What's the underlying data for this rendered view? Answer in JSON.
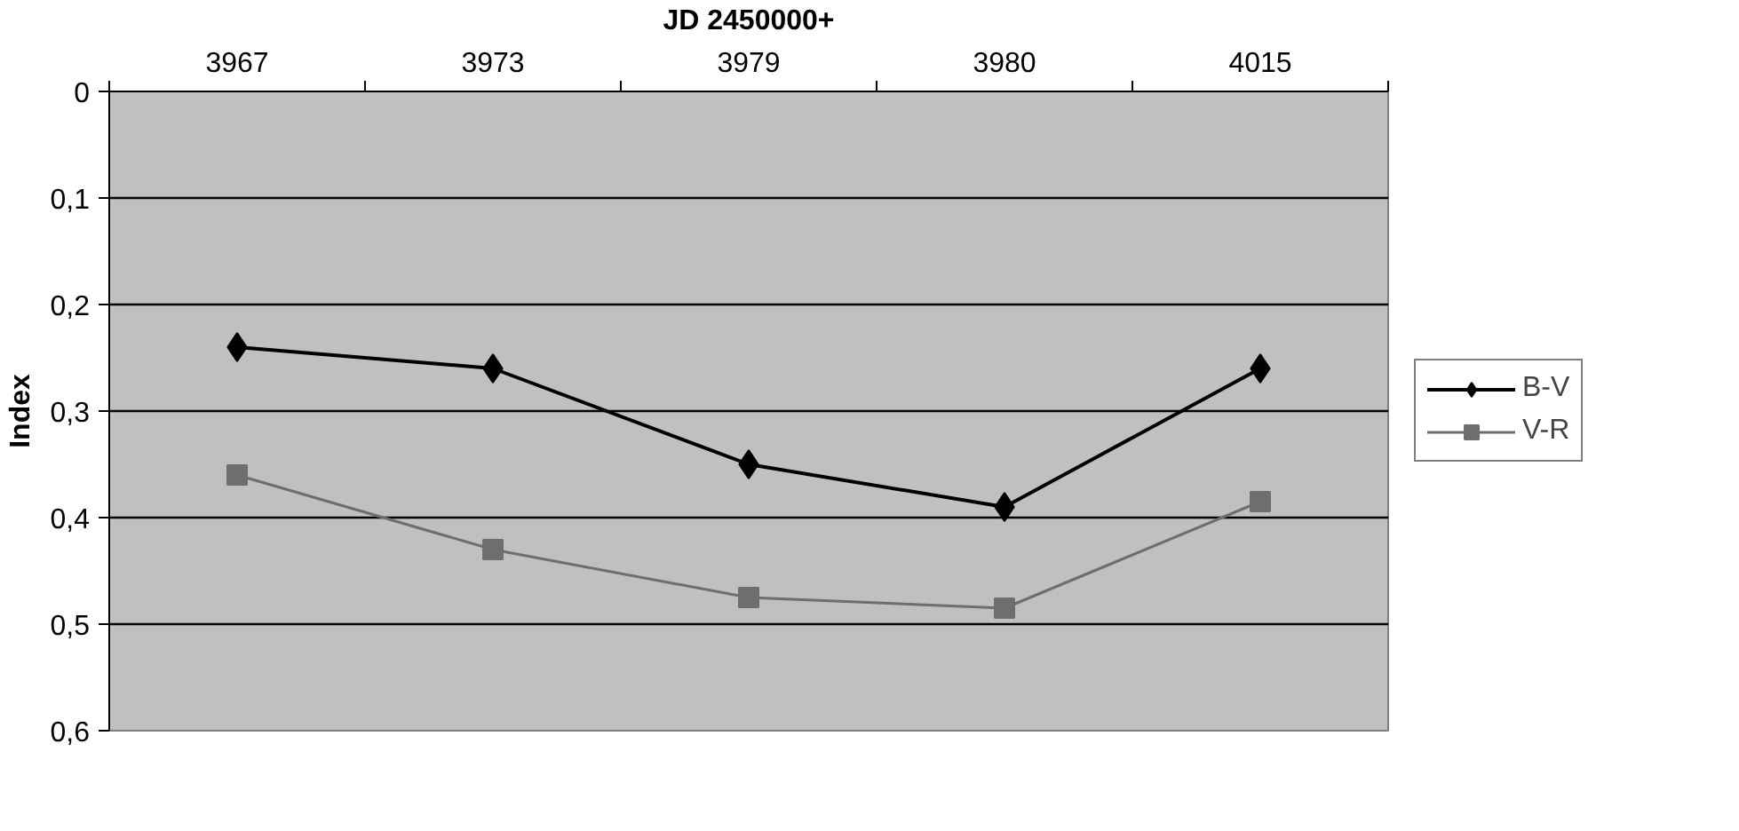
{
  "chart_data": {
    "type": "line",
    "xlabel": "JD 2450000+",
    "ylabel": "Index",
    "categories": [
      "3967",
      "3973",
      "3979",
      "3980",
      "4015"
    ],
    "series": [
      {
        "name": "B-V",
        "color": "#000000",
        "marker": "diamond",
        "values": [
          0.24,
          0.26,
          0.35,
          0.39,
          0.26
        ]
      },
      {
        "name": "V-R",
        "color": "#6e6e6e",
        "marker": "square",
        "values": [
          0.36,
          0.43,
          0.475,
          0.485,
          0.385
        ]
      }
    ],
    "ylim": [
      0.6,
      0
    ],
    "yticks": [
      0,
      {
        "value": 0.1,
        "label": "0,1"
      },
      {
        "value": 0.2,
        "label": "0,2"
      },
      {
        "value": 0.3,
        "label": "0,3"
      },
      {
        "value": 0.4,
        "label": "0,4"
      },
      {
        "value": 0.5,
        "label": "0,5"
      },
      {
        "value": 0.6,
        "label": "0,6"
      }
    ],
    "grid": "y",
    "legend": "right",
    "line_style": "solid"
  }
}
